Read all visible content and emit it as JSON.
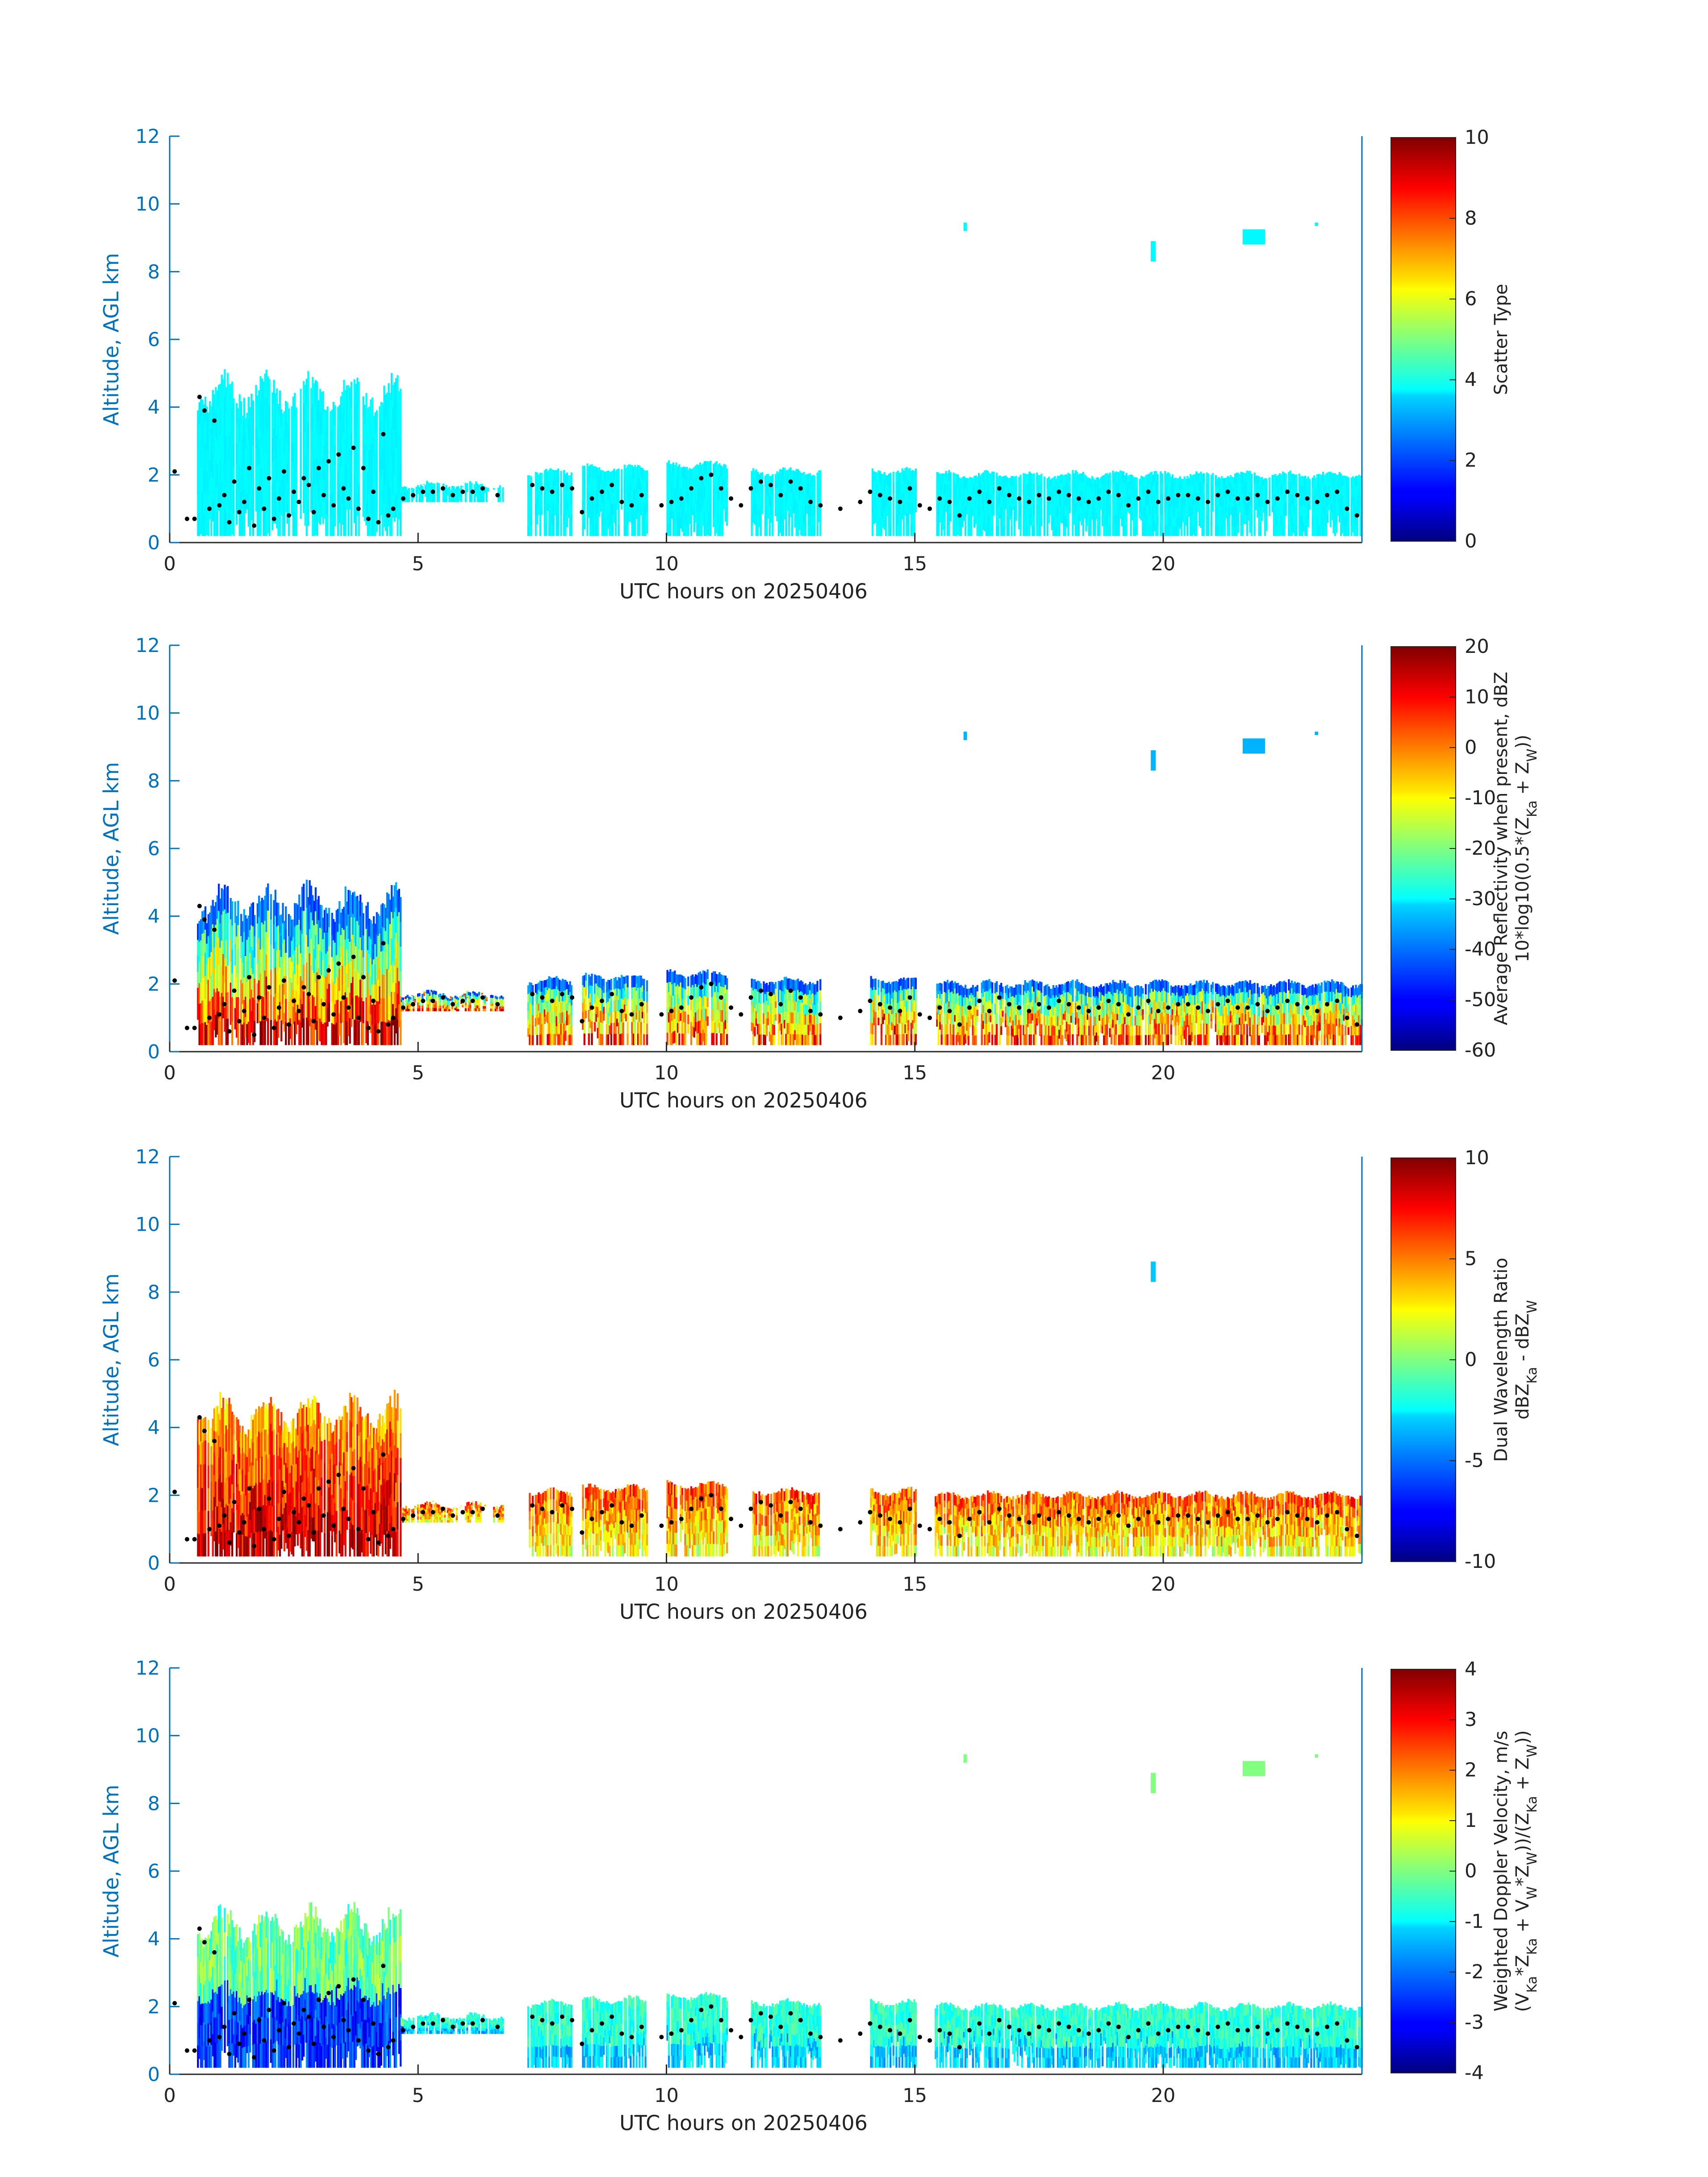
{
  "chart_data": [
    {
      "type": "heatmap",
      "panel": "scatter-type",
      "xlabel": "UTC hours on 20250406",
      "ylabel": "Altitude, AGL km",
      "xlim": [
        0,
        24
      ],
      "ylim": [
        0,
        12
      ],
      "xticks": [
        0,
        5,
        10,
        15,
        20
      ],
      "yticks": [
        0,
        2,
        4,
        6,
        8,
        10,
        12
      ],
      "colorbar": {
        "label_lines": [
          "Scatter Type"
        ],
        "clim": [
          0,
          10
        ],
        "ticks": [
          0,
          2,
          4,
          6,
          8,
          10
        ],
        "colormap": "jet"
      },
      "dominant_value": 3.6
    },
    {
      "type": "heatmap",
      "panel": "average-reflectivity",
      "xlabel": "UTC hours on 20250406",
      "ylabel": "Altitude, AGL km",
      "xlim": [
        0,
        24
      ],
      "ylim": [
        0,
        12
      ],
      "xticks": [
        0,
        5,
        10,
        15,
        20
      ],
      "yticks": [
        0,
        2,
        4,
        6,
        8,
        10,
        12
      ],
      "colorbar": {
        "label_lines": [
          "Average Reflectivity when present, dBZ",
          "10*log10(0.5*(Z",
          "Ka",
          " + Z",
          "W",
          "))"
        ],
        "clim": [
          -60,
          20
        ],
        "ticks": [
          -60,
          -50,
          -40,
          -30,
          -20,
          -10,
          0,
          10,
          20
        ],
        "colormap": "jet"
      },
      "units": "dBZ"
    },
    {
      "type": "heatmap",
      "panel": "dual-wavelength-ratio",
      "xlabel": "UTC hours on 20250406",
      "ylabel": "Altitude, AGL km",
      "xlim": [
        0,
        24
      ],
      "ylim": [
        0,
        12
      ],
      "xticks": [
        0,
        5,
        10,
        15,
        20
      ],
      "yticks": [
        0,
        2,
        4,
        6,
        8,
        10,
        12
      ],
      "colorbar": {
        "label_lines": [
          "Dual Wavelength Ratio",
          "dBZ",
          "Ka",
          " - dBZ",
          "W"
        ],
        "clim": [
          -10,
          10
        ],
        "ticks": [
          -10,
          -5,
          0,
          5,
          10
        ],
        "colormap": "jet"
      }
    },
    {
      "type": "heatmap",
      "panel": "weighted-doppler-velocity",
      "xlabel": "UTC hours on 20250406",
      "ylabel": "Altitude, AGL km",
      "xlim": [
        0,
        24
      ],
      "ylim": [
        0,
        12
      ],
      "xticks": [
        0,
        5,
        10,
        15,
        20
      ],
      "yticks": [
        0,
        2,
        4,
        6,
        8,
        10,
        12
      ],
      "colorbar": {
        "label_lines": [
          "Weighted Doppler Velocity, m/s",
          "(V",
          "Ka",
          "*Z",
          "Ka",
          " + V",
          "W",
          "*Z",
          "W",
          "))/(Z",
          "Ka",
          " + Z",
          "W",
          "))"
        ],
        "clim": [
          -4,
          4
        ],
        "ticks": [
          -4,
          -3,
          -2,
          -1,
          0,
          1,
          2,
          3,
          4
        ],
        "colormap": "jet"
      },
      "units": "m/s"
    }
  ],
  "cloud_regions": [
    {
      "x0": 0.55,
      "x1": 4.65,
      "ybot": 0.2,
      "ytop": 4.4
    },
    {
      "x0": 4.65,
      "x1": 6.7,
      "ybot": 1.2,
      "ytop": 1.7
    },
    {
      "x0": 7.2,
      "x1": 8.1,
      "ybot": 0.2,
      "ytop": 2.1
    },
    {
      "x0": 8.3,
      "x1": 9.6,
      "ybot": 0.2,
      "ytop": 2.2
    },
    {
      "x0": 10.0,
      "x1": 11.2,
      "ybot": 0.2,
      "ytop": 2.3
    },
    {
      "x0": 11.7,
      "x1": 13.1,
      "ybot": 0.2,
      "ytop": 2.1
    },
    {
      "x0": 14.1,
      "x1": 15.0,
      "ybot": 0.2,
      "ytop": 2.1
    },
    {
      "x0": 15.4,
      "x1": 24.0,
      "ybot": 0.2,
      "ytop": 2.0
    }
  ],
  "high_clouds": [
    {
      "x0": 15.98,
      "x1": 16.05,
      "ybot": 9.2,
      "ytop": 9.45
    },
    {
      "x0": 19.75,
      "x1": 19.85,
      "ybot": 8.3,
      "ytop": 8.9
    },
    {
      "x0": 21.6,
      "x1": 22.05,
      "ybot": 8.8,
      "ytop": 9.25
    },
    {
      "x0": 23.05,
      "x1": 23.12,
      "ybot": 9.35,
      "ytop": 9.45
    }
  ],
  "cloud_base_series": {
    "x": [
      0.1,
      0.35,
      0.5,
      0.6,
      0.7,
      0.8,
      0.9,
      1.0,
      1.1,
      1.2,
      1.3,
      1.4,
      1.5,
      1.6,
      1.7,
      1.8,
      1.9,
      2.0,
      2.1,
      2.2,
      2.3,
      2.4,
      2.5,
      2.6,
      2.7,
      2.8,
      2.9,
      3.0,
      3.1,
      3.2,
      3.3,
      3.4,
      3.5,
      3.6,
      3.7,
      3.8,
      3.9,
      4.0,
      4.1,
      4.2,
      4.3,
      4.4,
      4.5,
      4.7,
      4.9,
      5.1,
      5.3,
      5.5,
      5.7,
      5.9,
      6.1,
      6.3,
      6.6,
      7.3,
      7.5,
      7.7,
      7.9,
      8.1,
      8.3,
      8.5,
      8.7,
      8.9,
      9.1,
      9.3,
      9.5,
      9.9,
      10.1,
      10.3,
      10.5,
      10.7,
      10.9,
      11.1,
      11.3,
      11.5,
      11.7,
      11.9,
      12.1,
      12.3,
      12.5,
      12.7,
      12.9,
      13.1,
      13.5,
      13.9,
      14.1,
      14.3,
      14.5,
      14.7,
      14.9,
      15.1,
      15.3,
      15.5,
      15.7,
      15.9,
      16.1,
      16.3,
      16.5,
      16.7,
      16.9,
      17.1,
      17.3,
      17.5,
      17.7,
      17.9,
      18.1,
      18.3,
      18.5,
      18.7,
      18.9,
      19.1,
      19.3,
      19.5,
      19.7,
      19.9,
      20.1,
      20.3,
      20.5,
      20.7,
      20.9,
      21.1,
      21.3,
      21.5,
      21.7,
      21.9,
      22.1,
      22.3,
      22.5,
      22.7,
      22.9,
      23.1,
      23.3,
      23.5,
      23.7,
      23.9
    ],
    "y": [
      2.1,
      0.7,
      0.7,
      4.3,
      3.9,
      1.0,
      3.6,
      1.1,
      1.4,
      0.6,
      1.8,
      0.9,
      1.2,
      2.2,
      0.5,
      1.6,
      1.0,
      1.9,
      0.7,
      1.3,
      2.1,
      0.8,
      1.5,
      1.2,
      1.9,
      1.7,
      0.9,
      2.2,
      1.4,
      2.4,
      1.1,
      2.6,
      1.6,
      1.3,
      2.8,
      1.0,
      2.2,
      0.7,
      1.5,
      0.6,
      3.2,
      0.8,
      1.0,
      1.3,
      1.4,
      1.5,
      1.5,
      1.6,
      1.4,
      1.5,
      1.5,
      1.6,
      1.4,
      1.7,
      1.6,
      1.5,
      1.7,
      1.6,
      0.9,
      1.3,
      1.5,
      1.7,
      1.2,
      1.1,
      1.4,
      1.1,
      1.2,
      1.3,
      1.6,
      1.9,
      2.0,
      1.6,
      1.3,
      1.1,
      1.6,
      1.8,
      1.7,
      1.4,
      1.8,
      1.6,
      1.2,
      1.1,
      1.0,
      1.2,
      1.5,
      1.4,
      1.3,
      1.2,
      1.6,
      1.1,
      1.0,
      1.3,
      1.2,
      0.8,
      1.3,
      1.5,
      1.2,
      1.6,
      1.4,
      1.3,
      1.2,
      1.4,
      1.3,
      1.5,
      1.4,
      1.3,
      1.2,
      1.3,
      1.5,
      1.4,
      1.1,
      1.3,
      1.5,
      1.2,
      1.3,
      1.4,
      1.4,
      1.3,
      1.2,
      1.4,
      1.5,
      1.3,
      1.3,
      1.4,
      1.2,
      1.3,
      1.5,
      1.4,
      1.3,
      1.2,
      1.4,
      1.5,
      1.0,
      0.8
    ]
  }
}
